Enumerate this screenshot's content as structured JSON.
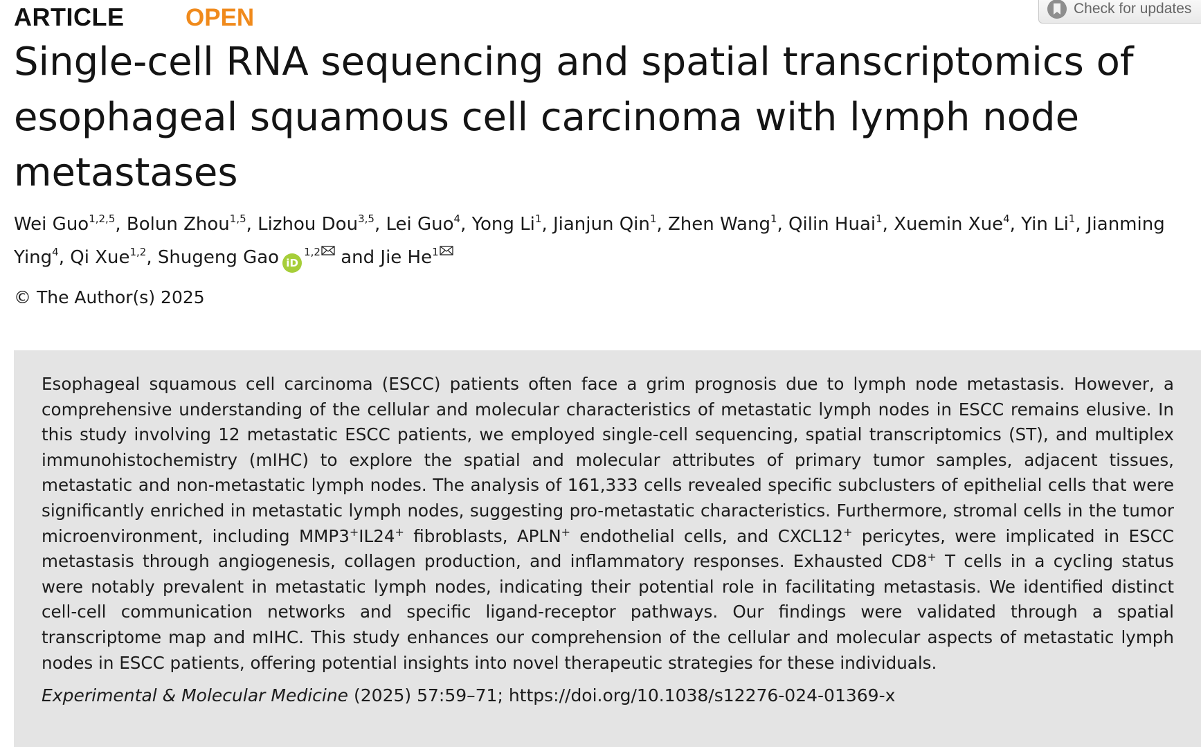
{
  "header": {
    "article_type": "ARTICLE",
    "open_label": "OPEN",
    "check_updates_label": "Check for updates"
  },
  "title": "Single-cell RNA sequencing and spatial transcriptomics of esophageal squamous cell carcinoma with lymph node metastases",
  "authors": [
    {
      "name": "Wei Guo",
      "aff": "1,2,5",
      "sep": ", "
    },
    {
      "name": "Bolun Zhou",
      "aff": "1,5",
      "sep": ", "
    },
    {
      "name": "Lizhou Dou",
      "aff": "3,5",
      "sep": ", "
    },
    {
      "name": "Lei Guo",
      "aff": "4",
      "sep": ", "
    },
    {
      "name": "Yong Li",
      "aff": "1",
      "sep": ", "
    },
    {
      "name": "Jianjun Qin",
      "aff": "1",
      "sep": ", "
    },
    {
      "name": "Zhen Wang",
      "aff": "1",
      "sep": ", "
    },
    {
      "name": "Qilin Huai",
      "aff": "1",
      "sep": ", "
    },
    {
      "name": "Xuemin Xue",
      "aff": "4",
      "sep": ", "
    },
    {
      "name": "Yin Li",
      "aff": "1",
      "sep": ", "
    },
    {
      "name": "Jianming Ying",
      "aff": "4",
      "sep": ", "
    },
    {
      "name": "Qi Xue",
      "aff": "1,2",
      "sep": ", "
    },
    {
      "name": "Shugeng Gao",
      "aff": "1,2",
      "orcid": true,
      "mail": true,
      "sep": " and "
    },
    {
      "name": "Jie He",
      "aff": "1",
      "mail": true,
      "sep": ""
    }
  ],
  "orcid_icon_text": "iD",
  "copyright": "© The Author(s) 2025",
  "abstract": {
    "part1": "Esophageal squamous cell carcinoma (ESCC) patients often face a grim prognosis due to lymph node metastasis. However, a comprehensive understanding of the cellular and molecular characteristics of metastatic lymph nodes in ESCC remains elusive. In this study involving 12 metastatic ESCC patients, we employed single-cell sequencing, spatial transcriptomics (ST), and multiplex immunohistochemistry (mIHC) to explore the spatial and molecular attributes of primary tumor samples, adjacent tissues, metastatic and non-metastatic lymph nodes. The analysis of 161,333 cells revealed specific subclusters of epithelial cells that were significantly enriched in metastatic lymph nodes, suggesting pro-metastatic characteristics. Furthermore, stromal cells in the tumor microenvironment, including MMP3",
    "sup_plus": "+",
    "part2": "IL24",
    "part3": " fibroblasts, APLN",
    "part4": " endothelial cells, and CXCL12",
    "part5": " pericytes, were implicated in ESCC metastasis through angiogenesis, collagen production, and inflammatory responses. Exhausted CD8",
    "part6": " T cells in a cycling status were notably prevalent in metastatic lymph nodes, indicating their potential role in facilitating metastasis. We identified distinct cell-cell communication networks and specific ligand-receptor pathways. Our findings were validated through a spatial transcriptome map and mIHC. This study enhances our comprehension of the cellular and molecular aspects of metastatic lymph nodes in ESCC patients, offering potential insights into novel therapeutic strategies for these individuals."
  },
  "citation": {
    "journal": "Experimental & Molecular Medicine",
    "details": " (2025) 57:59–71; ",
    "doi": "https://doi.org/10.1038/s12276-024-01369-x"
  },
  "colors": {
    "open": "#f08a1c",
    "abstract_bg": "#e4e4e4",
    "orcid": "#a6ce39"
  }
}
